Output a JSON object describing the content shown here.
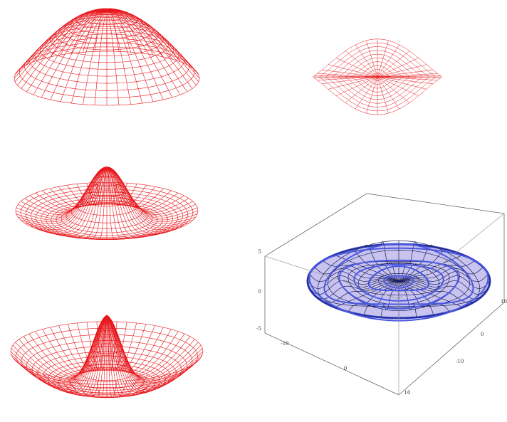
{
  "box_plot": {
    "z_ticks": [
      "5",
      "0",
      "-5"
    ],
    "x_ticks": [
      "-10",
      "0",
      "10"
    ],
    "y_ticks": [
      "10",
      "0",
      "-10"
    ]
  }
}
